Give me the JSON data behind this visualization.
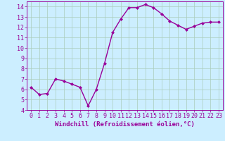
{
  "x": [
    0,
    1,
    2,
    3,
    4,
    5,
    6,
    7,
    8,
    9,
    10,
    11,
    12,
    13,
    14,
    15,
    16,
    17,
    18,
    19,
    20,
    21,
    22,
    23
  ],
  "y": [
    6.2,
    5.5,
    5.6,
    7.0,
    6.8,
    6.5,
    6.2,
    4.4,
    6.0,
    8.5,
    11.5,
    12.8,
    13.9,
    13.9,
    14.2,
    13.9,
    13.3,
    12.6,
    12.2,
    11.8,
    12.1,
    12.4,
    12.5,
    12.5
  ],
  "line_color": "#990099",
  "marker": "D",
  "marker_size": 2.0,
  "linewidth": 1.0,
  "bg_color": "#cceeff",
  "grid_color": "#aaccbb",
  "xlabel": "Windchill (Refroidissement éolien,°C)",
  "xlabel_color": "#990099",
  "xlabel_fontsize": 6.5,
  "tick_color": "#990099",
  "tick_fontsize": 6.0,
  "xlim": [
    -0.5,
    23.5
  ],
  "ylim": [
    4,
    14.5
  ],
  "yticks": [
    4,
    5,
    6,
    7,
    8,
    9,
    10,
    11,
    12,
    13,
    14
  ],
  "xticks": [
    0,
    1,
    2,
    3,
    4,
    5,
    6,
    7,
    8,
    9,
    10,
    11,
    12,
    13,
    14,
    15,
    16,
    17,
    18,
    19,
    20,
    21,
    22,
    23
  ]
}
